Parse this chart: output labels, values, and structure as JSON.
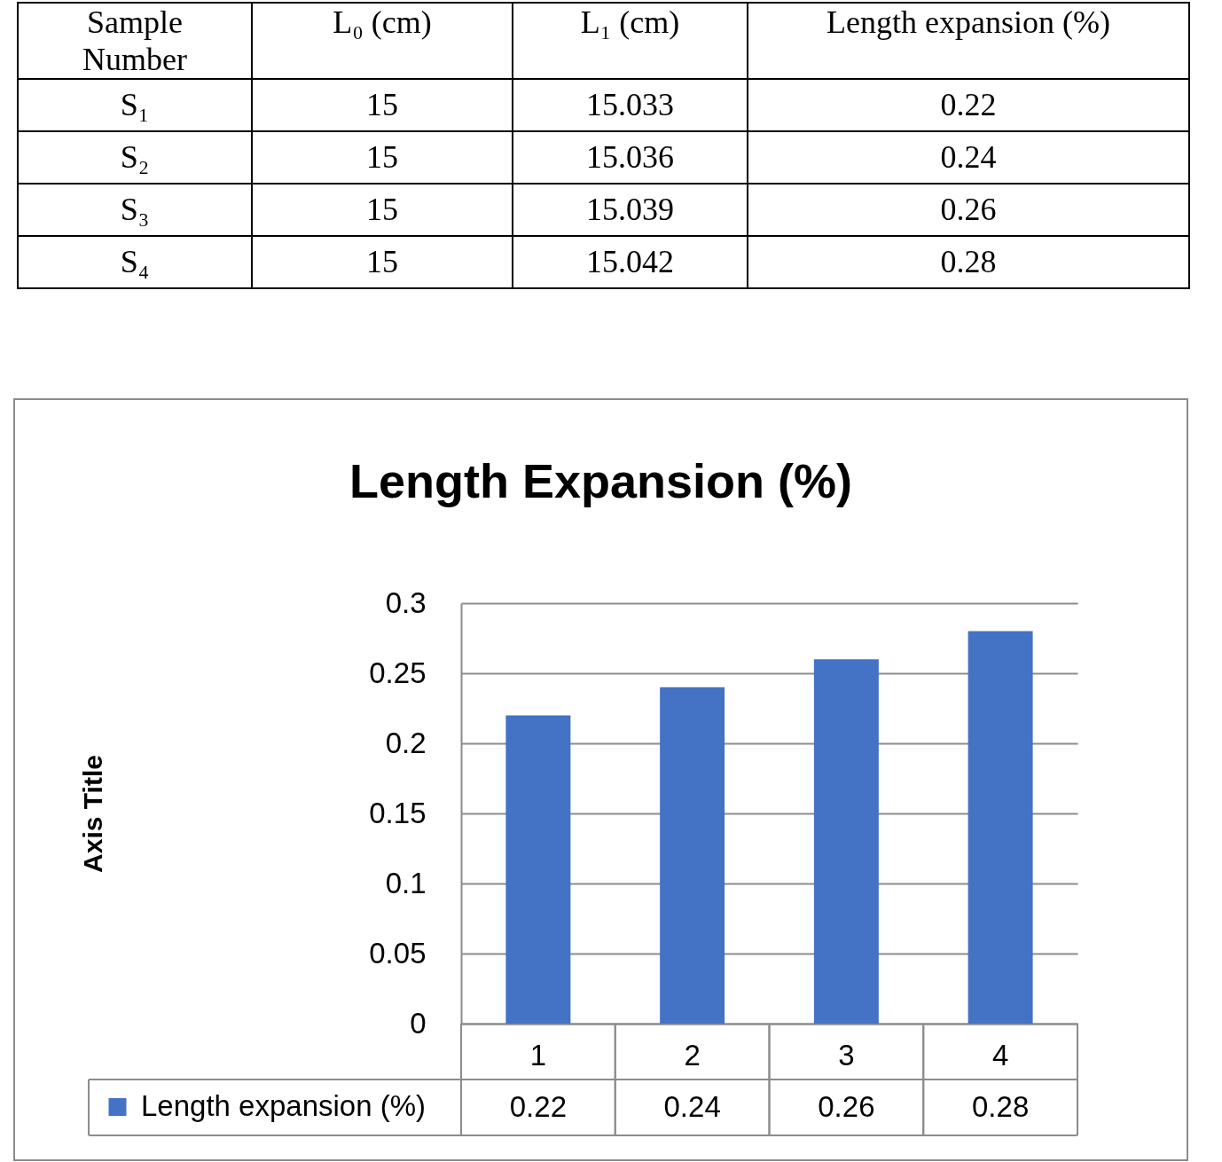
{
  "chart_data": [
    {
      "type": "other",
      "xlabel": "Sample Number",
      "categories": [
        "S₁",
        "S₂",
        "S₃",
        "S₄"
      ],
      "series": [
        {
          "name": "L₀ (cm)",
          "values": [
            15,
            15,
            15,
            15
          ]
        },
        {
          "name": "L₁ (cm)",
          "values": [
            15.033,
            15.036,
            15.039,
            15.042
          ]
        },
        {
          "name": "Length expansion (%)",
          "values": [
            0.22,
            0.24,
            0.26,
            0.28
          ]
        }
      ],
      "data_labels": true
    },
    {
      "type": "bar",
      "title": "Length Expansion (%)",
      "ylabel": "Axis Title",
      "categories": [
        "1",
        "2",
        "3",
        "4"
      ],
      "series": [
        {
          "name": "Length expansion (%)",
          "color": "#4472c4",
          "values": [
            0.22,
            0.24,
            0.26,
            0.28
          ]
        }
      ],
      "ylim": [
        0,
        0.3
      ],
      "yticks": [
        0,
        0.05,
        0.1,
        0.15,
        0.2,
        0.25,
        0.3
      ],
      "grid": "y",
      "legend": "bottom left",
      "data_labels": true
    }
  ]
}
